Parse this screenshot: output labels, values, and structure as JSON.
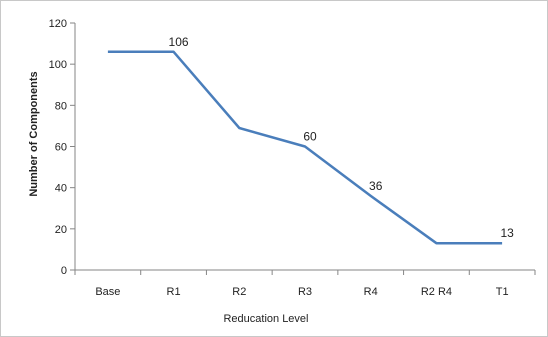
{
  "chart_data": {
    "type": "line",
    "categories": [
      "Base",
      "R1",
      "R2",
      "R3",
      "R4",
      "R2 R4",
      "T1"
    ],
    "series": [
      {
        "values": [
          106,
          106,
          69,
          60,
          36,
          13,
          13
        ],
        "color": "#4a7ebb"
      }
    ],
    "data_labels": [
      {
        "index": 1,
        "text": "106"
      },
      {
        "index": 3,
        "text": "60"
      },
      {
        "index": 4,
        "text": "36"
      },
      {
        "index": 6,
        "text": "13"
      }
    ],
    "xlabel": "Reducation Level",
    "ylabel": "Number of Components",
    "ylim": [
      0,
      120
    ],
    "yticks": [
      0,
      20,
      40,
      60,
      80,
      100,
      120
    ],
    "grid": false,
    "legend": "none"
  }
}
